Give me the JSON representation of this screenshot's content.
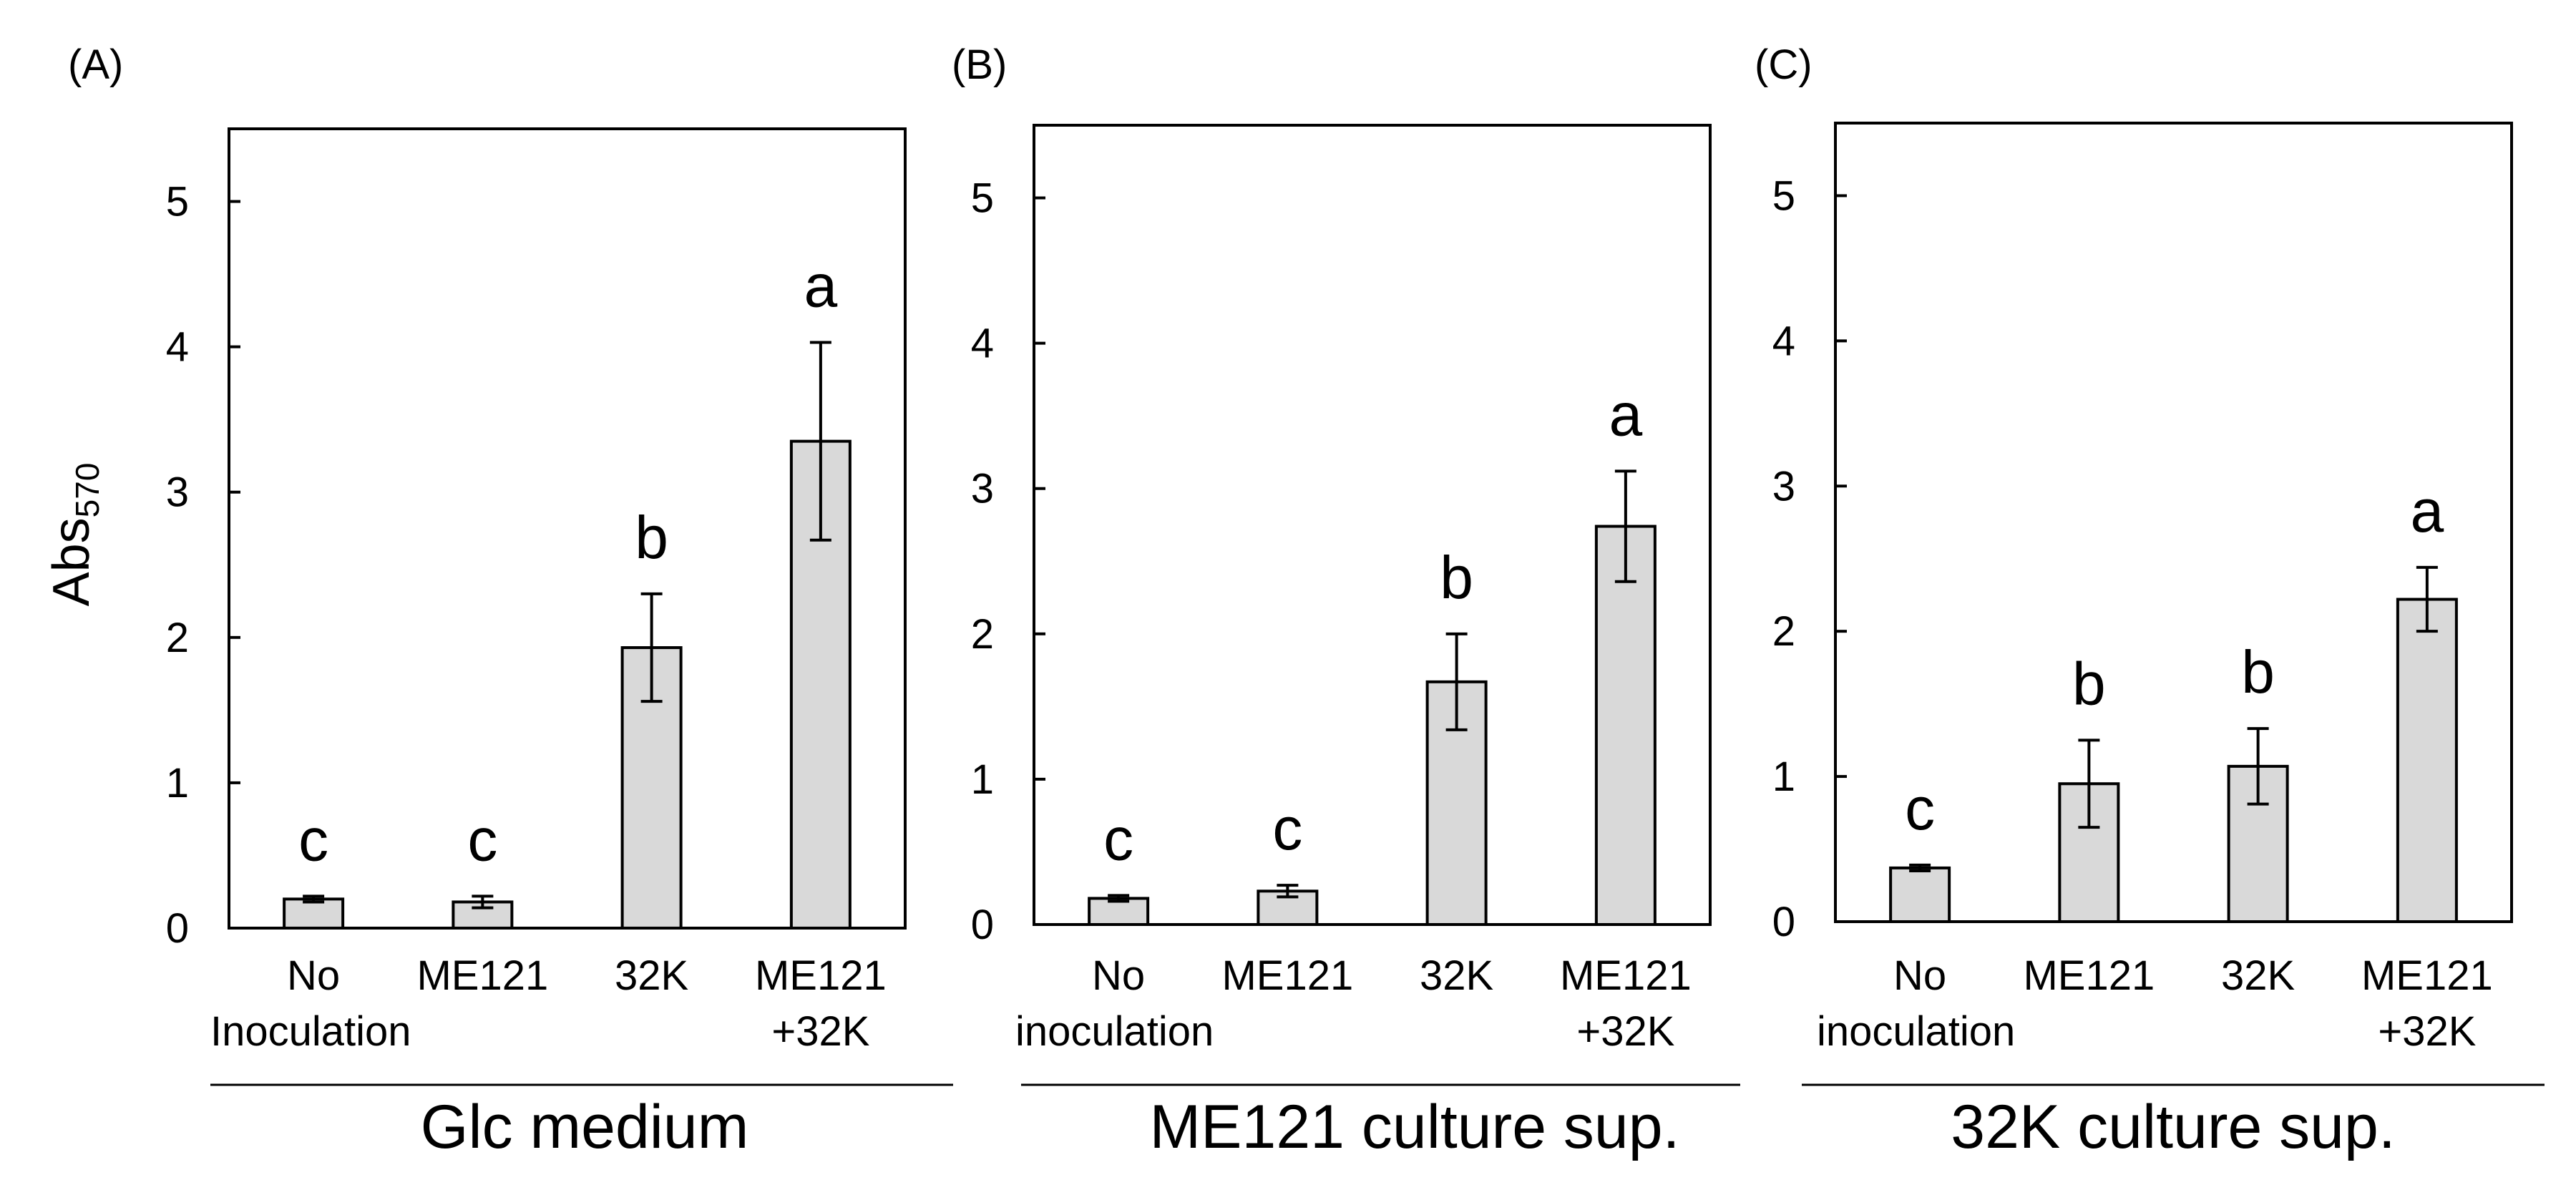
{
  "figure": {
    "y_axis_label": "Abs",
    "y_axis_label_subscript": "570"
  },
  "chart_data": [
    {
      "type": "bar",
      "panel_label": "(A)",
      "group_label": "Glc medium",
      "categories": [
        [
          "No",
          "Inoculation"
        ],
        [
          "ME121"
        ],
        [
          "32K"
        ],
        [
          "ME121",
          "+32K"
        ]
      ],
      "values": [
        0.2,
        0.18,
        1.93,
        3.35
      ],
      "errors": [
        0.02,
        0.04,
        0.37,
        0.68
      ],
      "significance": [
        "c",
        "c",
        "b",
        "a"
      ],
      "ylim": [
        0,
        5.5
      ],
      "yticks": [
        0,
        1,
        2,
        3,
        4,
        5
      ],
      "xlabel": "Glc medium",
      "ylabel": "Abs570"
    },
    {
      "type": "bar",
      "panel_label": "(B)",
      "group_label": "ME121 culture sup.",
      "categories": [
        [
          "No",
          "inoculation"
        ],
        [
          "ME121"
        ],
        [
          "32K"
        ],
        [
          "ME121",
          "+32K"
        ]
      ],
      "values": [
        0.18,
        0.23,
        1.67,
        2.74
      ],
      "errors": [
        0.02,
        0.04,
        0.33,
        0.38
      ],
      "significance": [
        "c",
        "c",
        "b",
        "a"
      ],
      "ylim": [
        0,
        5.5
      ],
      "yticks": [
        0,
        1,
        2,
        3,
        4,
        5
      ],
      "xlabel": "ME121 culture sup.",
      "ylabel": "Abs570"
    },
    {
      "type": "bar",
      "panel_label": "(C)",
      "group_label": "32K culture sup.",
      "categories": [
        [
          "No",
          "inoculation"
        ],
        [
          "ME121"
        ],
        [
          "32K"
        ],
        [
          "ME121",
          "+32K"
        ]
      ],
      "values": [
        0.37,
        0.95,
        1.07,
        2.22
      ],
      "errors": [
        0.02,
        0.3,
        0.26,
        0.22
      ],
      "significance": [
        "c",
        "b",
        "b",
        "a"
      ],
      "ylim": [
        0,
        5.5
      ],
      "yticks": [
        0,
        1,
        2,
        3,
        4,
        5
      ],
      "xlabel": "32K culture sup.",
      "ylabel": "Abs570"
    }
  ]
}
